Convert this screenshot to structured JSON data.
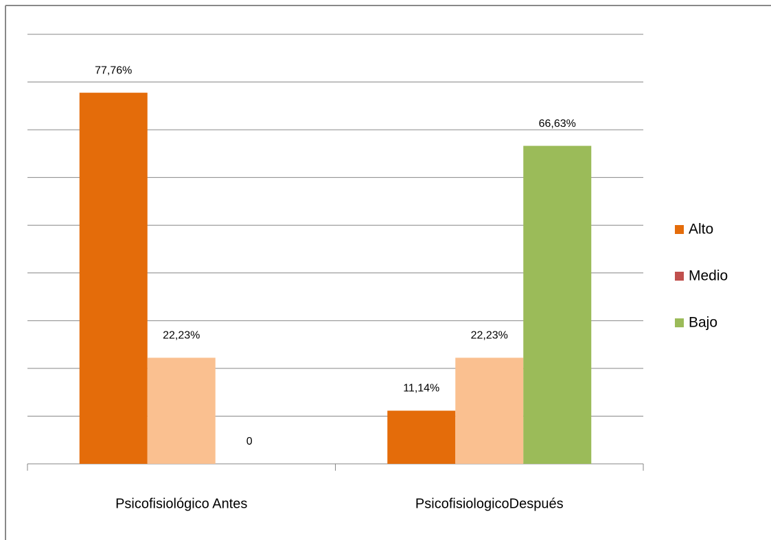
{
  "chart_data": {
    "type": "bar",
    "categories": [
      "Psicofisiológico Antes",
      "PsicofisiologicoDespués"
    ],
    "series": [
      {
        "name": "Alto",
        "color": "#e46c0a",
        "values": [
          77.76,
          11.14
        ],
        "value_labels": [
          "77,76%",
          "11,14%"
        ]
      },
      {
        "name": "Medio",
        "color": "#fac090",
        "legend_color": "#c0504d",
        "values": [
          22.23,
          22.23
        ],
        "value_labels": [
          "22,23%",
          "22,23%"
        ]
      },
      {
        "name": "Bajo",
        "color": "#9bbb59",
        "values": [
          0,
          66.63
        ],
        "value_labels": [
          "0",
          "66,63%"
        ]
      }
    ],
    "ylim": [
      0,
      90
    ],
    "yticks": [
      10,
      20,
      30,
      40,
      50,
      60,
      70,
      80,
      90
    ],
    "grid": true,
    "legend": "right"
  }
}
